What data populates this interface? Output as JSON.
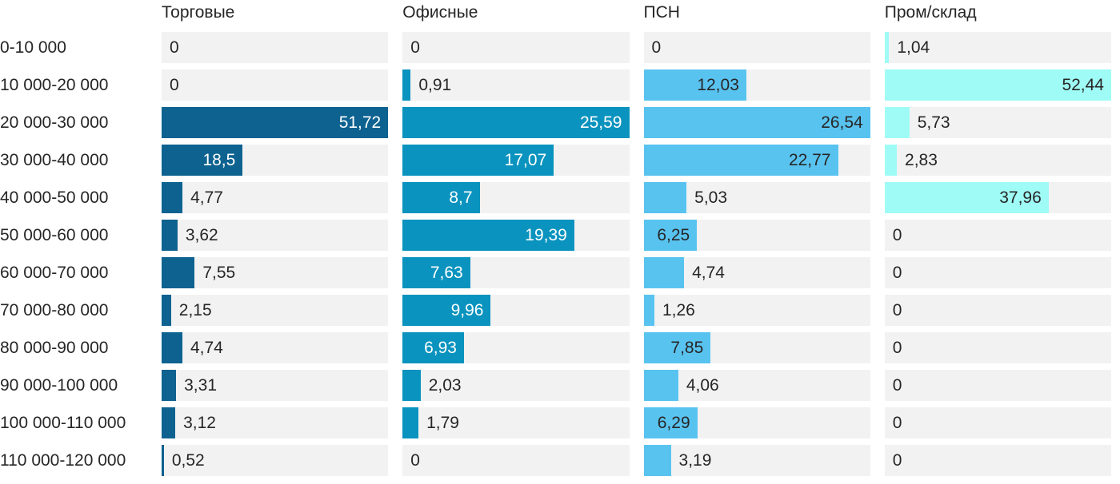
{
  "chart_data": {
    "type": "bar",
    "orientation": "horizontal",
    "title": "",
    "xlabel": "",
    "ylabel": "",
    "grid": false,
    "legend_position": "column-headers-top",
    "scaling": "each column scaled independently to its own max value",
    "decimal_separator": ",",
    "track_color": "#F2F2F2",
    "text_color": "#262626",
    "categories": [
      "0-10 000",
      "10 000-20 000",
      "20 000-30 000",
      "30 000-40 000",
      "40 000-50 000",
      "50 000-60 000",
      "60 000-70 000",
      "70 000-80 000",
      "80 000-90 000",
      "90 000-100 000",
      "100 000-110 000",
      "110 000-120 000"
    ],
    "series": [
      {
        "name": "Торговые",
        "color": "#0E6290",
        "inside_text_color": "#FFFFFF",
        "values": [
          0,
          0,
          51.72,
          18.5,
          4.77,
          3.62,
          7.55,
          2.15,
          4.74,
          3.31,
          3.12,
          0.52
        ],
        "labels": [
          "0",
          "0",
          "51,72",
          "18,5",
          "4,77",
          "3,62",
          "7,55",
          "2,15",
          "4,74",
          "3,31",
          "3,12",
          "0,52"
        ]
      },
      {
        "name": "Офисные",
        "color": "#0A93BE",
        "inside_text_color": "#FFFFFF",
        "values": [
          0,
          0.91,
          25.59,
          17.07,
          8.7,
          19.39,
          7.63,
          9.96,
          6.93,
          2.03,
          1.79,
          0
        ],
        "labels": [
          "0",
          "0,91",
          "25,59",
          "17,07",
          "8,7",
          "19,39",
          "7,63",
          "9,96",
          "6,93",
          "2,03",
          "1,79",
          "0"
        ]
      },
      {
        "name": "ПСН",
        "color": "#59C3F0",
        "inside_text_color": "#262626",
        "values": [
          0,
          12.03,
          26.54,
          22.77,
          5.03,
          6.25,
          4.74,
          1.26,
          7.85,
          4.06,
          6.29,
          3.19
        ],
        "labels": [
          "0",
          "12,03",
          "26,54",
          "22,77",
          "5,03",
          "6,25",
          "4,74",
          "1,26",
          "7,85",
          "4,06",
          "6,29",
          "3,19"
        ]
      },
      {
        "name": "Пром/склад",
        "color": "#9FFBF5",
        "inside_text_color": "#262626",
        "values": [
          1.04,
          52.44,
          5.73,
          2.83,
          37.96,
          0,
          0,
          0,
          0,
          0,
          0,
          0
        ],
        "labels": [
          "1,04",
          "52,44",
          "5,73",
          "2,83",
          "37,96",
          "0",
          "0",
          "0",
          "0",
          "0",
          "0",
          "0"
        ]
      }
    ]
  }
}
